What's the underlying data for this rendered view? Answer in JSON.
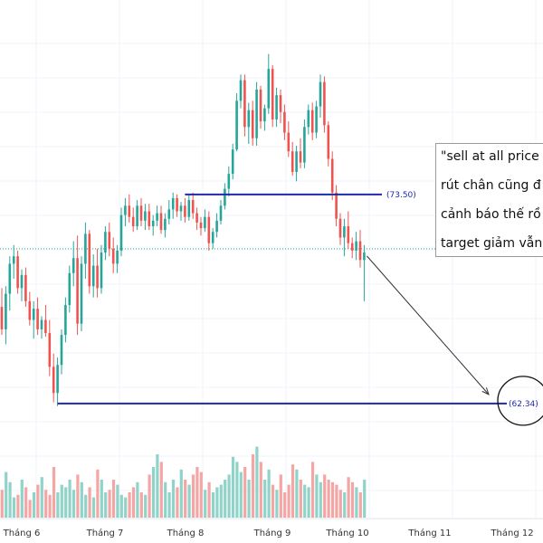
{
  "colors": {
    "up": "#26a69a",
    "down": "#ef5350",
    "up_vol": "#8fd3c9",
    "down_vol": "#f4a6a5",
    "level": "#1f2aa8",
    "dotted": "#26a69a",
    "grid": "#f0f3fa",
    "axis_text": "#333333",
    "arrow": "#333333"
  },
  "chart_data": {
    "type": "candlestick",
    "x_axis": {
      "ticks": [
        "Tháng 6",
        "Tháng 7",
        "Tháng 8",
        "Tháng 9",
        "Tháng 10",
        "Tháng 11",
        "Tháng 12"
      ]
    },
    "y_range": [
      59,
      84
    ],
    "levels": [
      {
        "label": "(73.50)",
        "value": 73.5
      },
      {
        "label": "(62.34)",
        "value": 62.34
      }
    ],
    "current_price": 70.6,
    "grid": true,
    "ohlc": [
      [
        67.5,
        68.5,
        66.0,
        66.3
      ],
      [
        66.3,
        68.6,
        65.5,
        68.2
      ],
      [
        68.2,
        70.2,
        67.3,
        69.8
      ],
      [
        69.8,
        70.8,
        69.0,
        70.2
      ],
      [
        70.2,
        70.5,
        68.2,
        68.5
      ],
      [
        68.5,
        69.5,
        67.8,
        69.2
      ],
      [
        69.2,
        69.6,
        67.5,
        67.8
      ],
      [
        67.8,
        68.3,
        66.5,
        66.8
      ],
      [
        66.8,
        67.8,
        65.8,
        67.4
      ],
      [
        67.4,
        68.0,
        66.0,
        66.3
      ],
      [
        66.3,
        67.0,
        65.8,
        66.8
      ],
      [
        66.8,
        67.6,
        65.9,
        66.1
      ],
      [
        66.1,
        66.8,
        63.8,
        64.3
      ],
      [
        64.3,
        65.0,
        62.4,
        62.9
      ],
      [
        62.9,
        64.8,
        62.2,
        64.4
      ],
      [
        64.4,
        66.3,
        63.9,
        66.0
      ],
      [
        66.0,
        68.0,
        65.6,
        67.6
      ],
      [
        67.6,
        69.7,
        67.2,
        69.3
      ],
      [
        69.3,
        71.0,
        68.6,
        70.1
      ],
      [
        70.1,
        71.3,
        66.0,
        66.6
      ],
      [
        66.6,
        70.2,
        66.2,
        69.8
      ],
      [
        69.8,
        72.0,
        69.0,
        71.4
      ],
      [
        71.4,
        71.6,
        68.2,
        68.6
      ],
      [
        68.6,
        70.3,
        68.0,
        69.7
      ],
      [
        69.7,
        70.6,
        68.0,
        68.5
      ],
      [
        68.5,
        70.8,
        68.2,
        70.4
      ],
      [
        70.4,
        71.8,
        70.0,
        71.5
      ],
      [
        71.5,
        72.0,
        70.2,
        70.6
      ],
      [
        70.6,
        71.2,
        69.3,
        69.8
      ],
      [
        69.8,
        70.8,
        69.3,
        70.5
      ],
      [
        70.5,
        72.8,
        70.2,
        72.4
      ],
      [
        72.4,
        73.3,
        71.8,
        72.9
      ],
      [
        72.9,
        73.5,
        72.0,
        72.3
      ],
      [
        72.3,
        72.8,
        71.5,
        71.8
      ],
      [
        71.8,
        73.2,
        71.6,
        72.9
      ],
      [
        72.9,
        73.3,
        71.8,
        72.1
      ],
      [
        72.1,
        73.0,
        71.6,
        72.6
      ],
      [
        72.6,
        73.0,
        71.6,
        71.8
      ],
      [
        71.8,
        72.4,
        71.3,
        72.1
      ],
      [
        72.1,
        72.9,
        71.8,
        72.5
      ],
      [
        72.5,
        72.9,
        71.4,
        71.6
      ],
      [
        71.6,
        72.5,
        71.2,
        72.2
      ],
      [
        72.2,
        73.2,
        71.9,
        72.7
      ],
      [
        72.7,
        73.6,
        72.2,
        73.3
      ],
      [
        73.3,
        73.5,
        72.3,
        72.6
      ],
      [
        72.6,
        73.1,
        72.1,
        72.9
      ],
      [
        72.9,
        73.3,
        72.0,
        72.3
      ],
      [
        72.3,
        73.5,
        72.1,
        73.2
      ],
      [
        73.2,
        73.6,
        72.2,
        72.5
      ],
      [
        72.5,
        72.8,
        71.6,
        72.0
      ],
      [
        72.0,
        72.3,
        71.3,
        71.7
      ],
      [
        71.7,
        72.7,
        71.5,
        72.3
      ],
      [
        72.3,
        72.6,
        70.5,
        70.9
      ],
      [
        70.9,
        71.7,
        70.6,
        71.5
      ],
      [
        71.5,
        72.5,
        71.2,
        72.1
      ],
      [
        72.1,
        73.2,
        71.9,
        72.9
      ],
      [
        72.9,
        74.1,
        72.7,
        73.8
      ],
      [
        73.8,
        75.0,
        73.4,
        74.6
      ],
      [
        74.6,
        76.2,
        74.3,
        75.9
      ],
      [
        75.9,
        78.9,
        75.8,
        78.5
      ],
      [
        78.5,
        79.9,
        78.1,
        79.6
      ],
      [
        79.6,
        79.9,
        76.6,
        77.1
      ],
      [
        77.1,
        78.4,
        76.2,
        78.0
      ],
      [
        78.0,
        78.5,
        76.1,
        76.5
      ],
      [
        76.5,
        79.5,
        76.1,
        79.1
      ],
      [
        79.1,
        79.3,
        77.0,
        77.4
      ],
      [
        77.4,
        78.3,
        76.9,
        78.1
      ],
      [
        78.1,
        81.0,
        77.8,
        80.2
      ],
      [
        80.2,
        80.4,
        77.1,
        77.5
      ],
      [
        77.5,
        79.2,
        77.1,
        78.8
      ],
      [
        78.8,
        79.1,
        77.3,
        77.9
      ],
      [
        77.9,
        78.3,
        76.4,
        76.8
      ],
      [
        76.8,
        77.4,
        75.5,
        75.8
      ],
      [
        75.8,
        76.3,
        74.5,
        74.7
      ],
      [
        74.7,
        76.1,
        74.2,
        75.8
      ],
      [
        75.8,
        76.5,
        74.9,
        75.2
      ],
      [
        75.2,
        77.5,
        74.9,
        77.1
      ],
      [
        77.1,
        78.3,
        76.7,
        78.0
      ],
      [
        78.0,
        78.4,
        76.4,
        76.8
      ],
      [
        76.8,
        78.5,
        76.5,
        78.2
      ],
      [
        78.2,
        79.9,
        77.6,
        79.5
      ],
      [
        79.5,
        79.8,
        76.8,
        77.2
      ],
      [
        77.2,
        77.4,
        75.0,
        75.4
      ],
      [
        75.4,
        75.8,
        73.2,
        73.6
      ],
      [
        73.6,
        74.0,
        71.8,
        72.2
      ],
      [
        72.2,
        72.5,
        70.8,
        71.2
      ],
      [
        71.2,
        72.2,
        70.2,
        71.8
      ],
      [
        71.8,
        72.6,
        70.6,
        70.9
      ],
      [
        70.9,
        71.2,
        70.1,
        70.5
      ],
      [
        70.5,
        71.5,
        70.0,
        71.0
      ],
      [
        71.0,
        71.6,
        69.6,
        70.0
      ],
      [
        70.0,
        70.8,
        67.8,
        70.4
      ]
    ],
    "volume": [
      22,
      36,
      28,
      16,
      18,
      30,
      24,
      14,
      20,
      26,
      32,
      22,
      18,
      40,
      20,
      26,
      24,
      30,
      22,
      34,
      28,
      18,
      24,
      16,
      38,
      30,
      20,
      22,
      30,
      26,
      18,
      16,
      20,
      24,
      28,
      20,
      18,
      34,
      40,
      50,
      44,
      28,
      20,
      30,
      24,
      38,
      30,
      26,
      34,
      40,
      36,
      22,
      28,
      20,
      24,
      26,
      30,
      34,
      48,
      44,
      36,
      40,
      30,
      50,
      56,
      44,
      30,
      38,
      26,
      22,
      34,
      20,
      26,
      42,
      38,
      30,
      26,
      24,
      44,
      34,
      28,
      34,
      30,
      28,
      26,
      22,
      20,
      32,
      28,
      24,
      20,
      30
    ]
  },
  "note": {
    "lines": [
      "\"sell at all price",
      "rút chân cũng đ",
      "cảnh báo thế rồ",
      "target giảm vẫn"
    ]
  }
}
